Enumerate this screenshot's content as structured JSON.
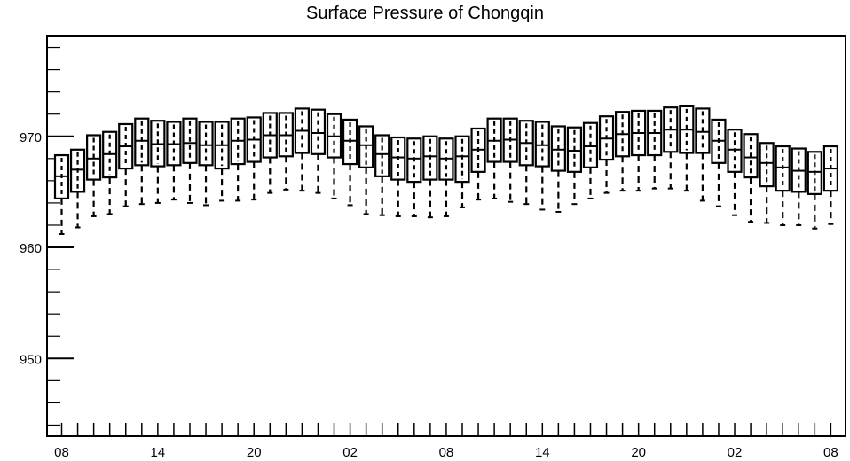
{
  "chart_data": {
    "type": "box",
    "title": "Surface Pressure of Chongqin",
    "xlabel": "",
    "ylabel": "",
    "ylim": [
      943,
      979
    ],
    "yticks": [
      950,
      960,
      970
    ],
    "ytick_labels": [
      "950",
      "960",
      "970"
    ],
    "xtick_labels": [
      "08",
      "14",
      "20",
      "02",
      "08",
      "14",
      "20",
      "02",
      "08"
    ],
    "xtick_positions": [
      0,
      6,
      12,
      18,
      24,
      30,
      36,
      42,
      48
    ],
    "grid": false,
    "legend": "none",
    "series": [
      {
        "x": [
          0,
          1,
          2,
          3,
          4,
          5,
          6,
          7,
          8,
          9,
          10,
          11,
          12,
          13,
          14,
          15,
          16,
          17,
          18,
          19,
          20,
          21,
          22,
          23,
          24,
          25,
          26,
          27,
          28,
          29,
          30,
          31,
          32,
          33,
          34,
          35,
          36,
          37,
          38,
          39,
          40,
          41,
          42,
          43,
          44,
          45,
          46,
          47,
          48
        ],
        "whisker_low": [
          961.2,
          961.8,
          962.8,
          963.0,
          963.7,
          963.9,
          964.0,
          964.3,
          964.0,
          963.8,
          964.2,
          964.2,
          964.3,
          964.9,
          965.2,
          965.1,
          964.9,
          964.4,
          963.8,
          963.0,
          962.9,
          962.8,
          962.8,
          962.7,
          962.8,
          963.6,
          964.3,
          964.4,
          964.1,
          963.9,
          963.4,
          963.2,
          963.9,
          964.4,
          964.9,
          965.1,
          965.1,
          965.3,
          965.3,
          965.1,
          964.2,
          963.7,
          962.9,
          962.3,
          962.2,
          962.0,
          962.0,
          961.7,
          962.1
        ],
        "q1": [
          964.4,
          965.0,
          966.1,
          966.3,
          967.1,
          967.4,
          967.3,
          967.4,
          967.6,
          967.4,
          967.1,
          967.5,
          967.7,
          968.1,
          968.2,
          968.5,
          968.4,
          968.1,
          967.5,
          967.2,
          966.4,
          966.1,
          965.9,
          966.1,
          966.1,
          965.9,
          966.8,
          967.7,
          967.7,
          967.4,
          967.3,
          966.9,
          966.8,
          967.2,
          967.9,
          968.2,
          968.3,
          968.3,
          968.6,
          968.5,
          968.5,
          967.6,
          966.8,
          966.3,
          965.5,
          965.1,
          965.0,
          964.8,
          965.1
        ],
        "median": [
          966.4,
          967.0,
          968.0,
          968.4,
          969.1,
          969.6,
          969.3,
          969.3,
          969.4,
          969.2,
          969.2,
          969.6,
          969.7,
          970.1,
          970.1,
          970.5,
          970.3,
          970.0,
          969.6,
          969.2,
          968.4,
          968.1,
          968.0,
          968.2,
          968.0,
          968.2,
          968.8,
          969.6,
          969.7,
          969.4,
          969.2,
          968.8,
          968.7,
          969.1,
          969.8,
          970.2,
          970.3,
          970.3,
          970.6,
          970.6,
          970.4,
          969.6,
          968.8,
          968.1,
          967.6,
          967.2,
          966.9,
          966.8,
          967.1
        ],
        "q3": [
          968.3,
          968.8,
          970.1,
          970.4,
          971.1,
          971.6,
          971.4,
          971.3,
          971.6,
          971.3,
          971.3,
          971.6,
          971.7,
          972.1,
          972.1,
          972.5,
          972.4,
          972.0,
          971.5,
          970.9,
          970.1,
          969.9,
          969.8,
          970.0,
          969.8,
          970.0,
          970.7,
          971.6,
          971.6,
          971.4,
          971.3,
          970.9,
          970.8,
          971.2,
          971.8,
          972.2,
          972.3,
          972.3,
          972.6,
          972.7,
          972.5,
          971.5,
          970.6,
          970.2,
          969.4,
          969.1,
          968.9,
          968.6,
          969.1
        ]
      }
    ]
  }
}
